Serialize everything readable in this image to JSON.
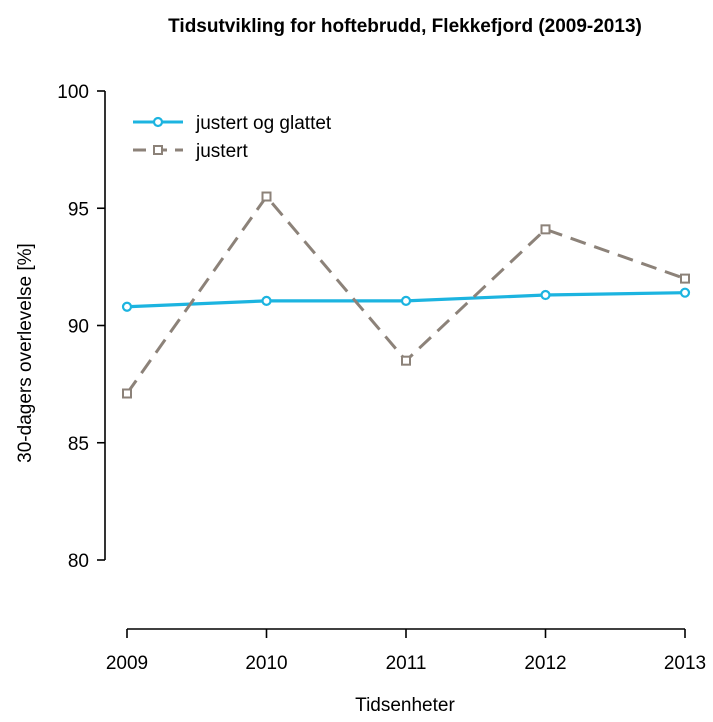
{
  "chart_data": {
    "type": "line",
    "title": "Tidsutvikling for hoftebrudd, Flekkefjord (2009-2013)",
    "xlabel": "Tidsenheter",
    "ylabel": "30-dagers overlevelse [%]",
    "categories": [
      "2009",
      "2010",
      "2011",
      "2012",
      "2013"
    ],
    "ylim": [
      80,
      100
    ],
    "yticks": [
      80,
      85,
      90,
      95,
      100
    ],
    "grid": false,
    "legend_position": "top-left",
    "series": [
      {
        "name": "justert og glattet",
        "values": [
          90.8,
          91.05,
          91.05,
          91.3,
          91.4
        ],
        "color": "#1CB4E0",
        "line_style": "solid",
        "marker": "circle"
      },
      {
        "name": "justert",
        "values": [
          87.1,
          95.5,
          88.5,
          94.1,
          92.0
        ],
        "color": "#8C8279",
        "line_style": "dashed",
        "marker": "square"
      }
    ]
  }
}
